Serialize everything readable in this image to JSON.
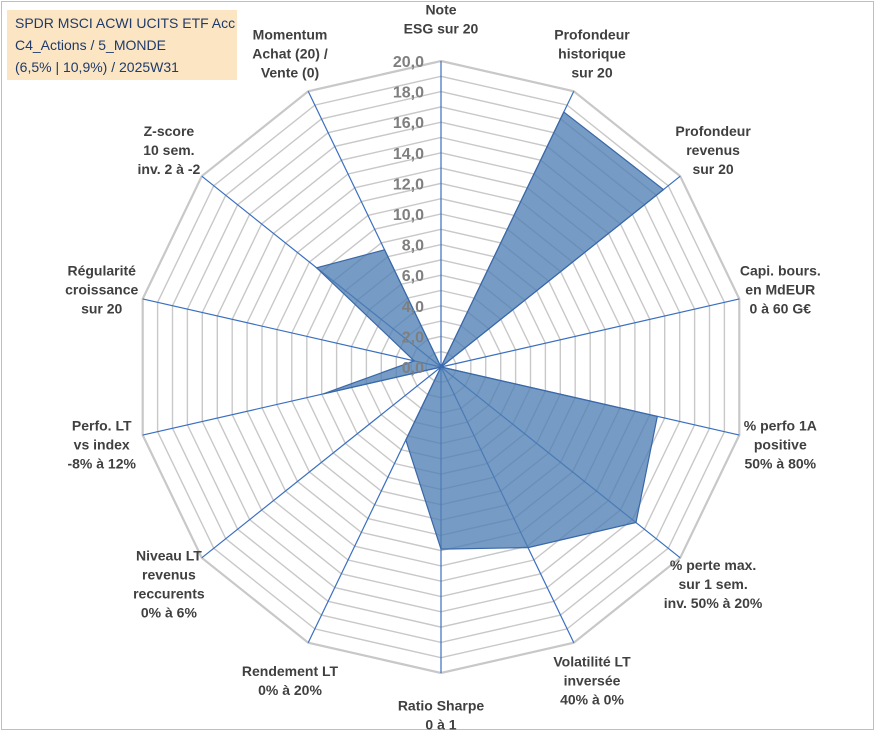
{
  "title_lines": [
    "SPDR MSCI ACWI UCITS ETF Acc",
    "C4_Actions / 5_MONDE",
    "(6,5% | 10,9%) / 2025W31"
  ],
  "colors": {
    "fill": "#4f7fb4",
    "stroke": "#3a68a8",
    "grid": "#c8c8c8",
    "spoke": "#3a6fc0",
    "title_bg": "#fbe5c2",
    "title_text": "#1f3b6b"
  },
  "chart_data": {
    "type": "radar",
    "rlim": [
      0,
      20
    ],
    "ticks": [
      "0,0",
      "2,0",
      "4,0",
      "6,0",
      "8,0",
      "10,0",
      "12,0",
      "14,0",
      "16,0",
      "18,0",
      "20,0"
    ],
    "grid": true,
    "legend": "none",
    "axes": [
      [
        "Note",
        "ESG sur 20"
      ],
      [
        "Profondeur",
        "historique",
        "sur 20"
      ],
      [
        "Profondeur",
        "revenus",
        "sur 20"
      ],
      [
        "Capi. bours.",
        "en MdEUR",
        "0 à 60 G€"
      ],
      [
        "% perfo 1A",
        "positive",
        "50% à 80%"
      ],
      [
        "% perte max.",
        "sur 1 sem.",
        "inv. 50% à 20%"
      ],
      [
        "Volatilité LT",
        "inversée",
        "40% à 0%"
      ],
      [
        "Ratio Sharpe",
        "0 à 1"
      ],
      [
        "Rendement LT",
        "0% à 20%"
      ],
      [
        "Niveau LT",
        "revenus",
        "reccurents",
        "0% à 6%"
      ],
      [
        "Perfo. LT",
        "vs index",
        "-8% à 12%"
      ],
      [
        "Régularité",
        "croissance",
        "sur 20"
      ],
      [
        "Z-score",
        "10 sem.",
        "inv. 2 à -2"
      ],
      [
        "Momentum",
        "Achat (20) /",
        "Vente (0)"
      ]
    ],
    "values": [
      0,
      18.5,
      18.6,
      0,
      14.5,
      16.3,
      13.1,
      11.9,
      5.3,
      0,
      7.9,
      1.8,
      10.4,
      8.5
    ]
  }
}
